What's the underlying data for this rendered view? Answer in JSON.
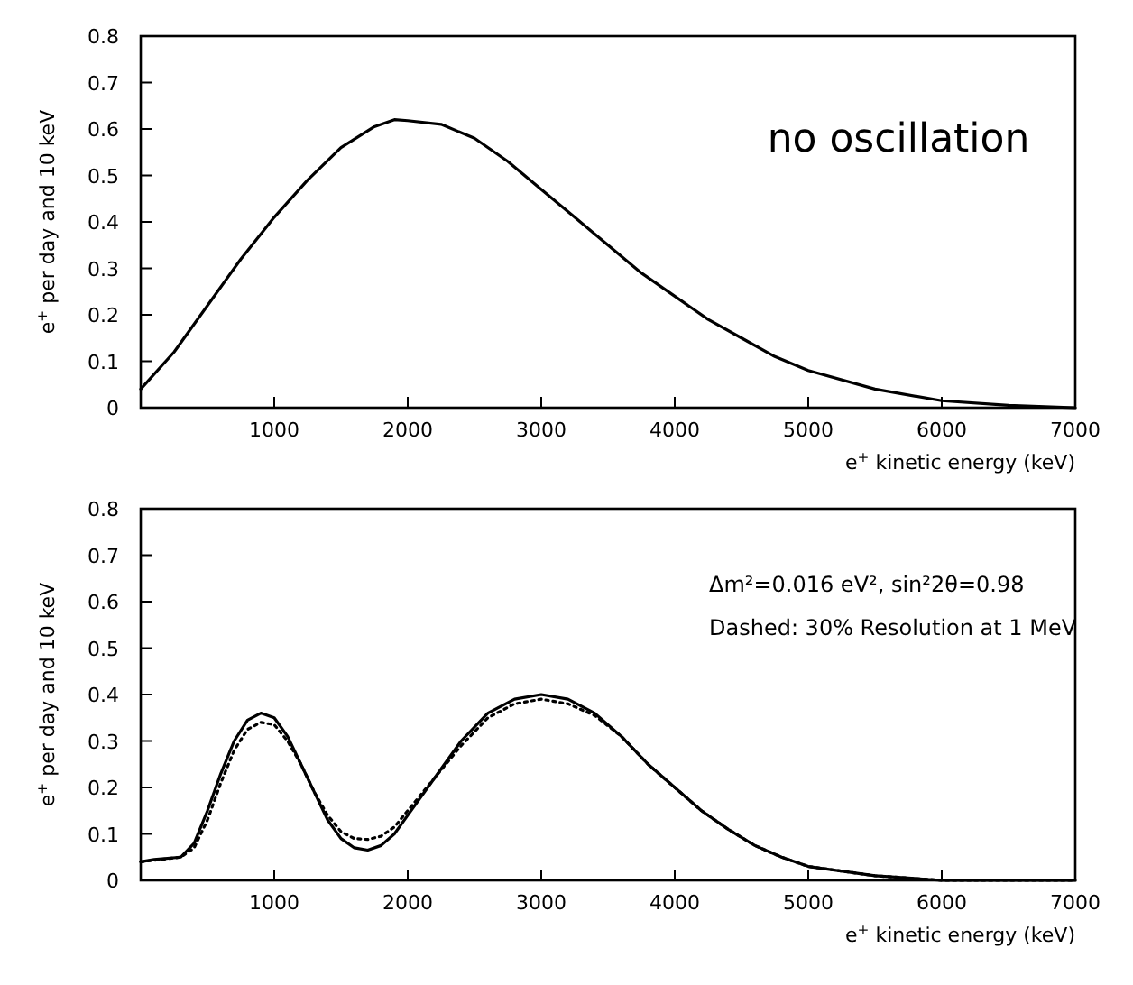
{
  "chart_data": [
    {
      "type": "line",
      "xlabel": "e$^{+}$ kinetic energy (keV)",
      "ylabel": "e$^{+}$ per day and 10 keV",
      "annotations": [
        "no oscillation"
      ],
      "xlim": [
        0,
        7000
      ],
      "ylim": [
        0,
        0.8
      ],
      "xticks": [
        1000,
        2000,
        3000,
        4000,
        5000,
        6000,
        7000
      ],
      "yticks": [
        0,
        0.1,
        0.2,
        0.3,
        0.4,
        0.5,
        0.6,
        0.7,
        0.8
      ],
      "grid": false,
      "marker": "none",
      "series": [
        {
          "color": "#000000",
          "line_style": "solid",
          "x": [
            0,
            250,
            500,
            750,
            1000,
            1250,
            1500,
            1750,
            1900,
            2000,
            2250,
            2500,
            2750,
            3000,
            3250,
            3500,
            3750,
            4000,
            4250,
            4500,
            4750,
            5000,
            5500,
            6000,
            6500,
            7000
          ],
          "values": [
            0.04,
            0.12,
            0.22,
            0.32,
            0.41,
            0.49,
            0.56,
            0.605,
            0.62,
            0.618,
            0.61,
            0.58,
            0.53,
            0.47,
            0.41,
            0.35,
            0.29,
            0.24,
            0.19,
            0.15,
            0.11,
            0.08,
            0.04,
            0.015,
            0.005,
            0
          ]
        }
      ]
    },
    {
      "type": "line",
      "xlabel": "e$^{+}$ kinetic energy (keV)",
      "ylabel": "e$^{+}$ per day and 10 keV",
      "annotations": [
        "Δm²=0.016 eV², sin²2θ=0.98",
        "Dashed: 30% Resolution at 1 MeV"
      ],
      "xlim": [
        0,
        7000
      ],
      "ylim": [
        0,
        0.8
      ],
      "xticks": [
        1000,
        2000,
        3000,
        4000,
        5000,
        6000,
        7000
      ],
      "yticks": [
        0,
        0.1,
        0.2,
        0.3,
        0.4,
        0.5,
        0.6,
        0.7,
        0.8
      ],
      "grid": false,
      "marker": "none",
      "series": [
        {
          "color": "#000000",
          "line_style": "solid",
          "x": [
            0,
            100,
            300,
            400,
            500,
            600,
            700,
            800,
            900,
            1000,
            1100,
            1200,
            1300,
            1400,
            1500,
            1600,
            1700,
            1800,
            1900,
            2000,
            2200,
            2400,
            2600,
            2800,
            3000,
            3200,
            3400,
            3600,
            3800,
            4000,
            4200,
            4400,
            4600,
            4800,
            5000,
            5500,
            6000,
            7000
          ],
          "values": [
            0.04,
            0.045,
            0.05,
            0.08,
            0.15,
            0.23,
            0.3,
            0.345,
            0.36,
            0.35,
            0.31,
            0.25,
            0.19,
            0.13,
            0.09,
            0.07,
            0.065,
            0.075,
            0.1,
            0.14,
            0.22,
            0.3,
            0.36,
            0.39,
            0.4,
            0.39,
            0.36,
            0.31,
            0.25,
            0.2,
            0.15,
            0.11,
            0.075,
            0.05,
            0.03,
            0.01,
            0,
            0
          ]
        },
        {
          "color": "#000000",
          "line_style": "dotted",
          "x": [
            0,
            300,
            400,
            500,
            600,
            700,
            800,
            900,
            1000,
            1100,
            1200,
            1300,
            1400,
            1500,
            1600,
            1700,
            1800,
            1900,
            2000,
            2200,
            2400,
            2600,
            2800,
            3000,
            3200,
            3400,
            3600,
            3800,
            4000,
            4200,
            4400,
            4600,
            4800,
            5000,
            5500,
            6000,
            7000
          ],
          "values": [
            0.04,
            0.05,
            0.07,
            0.13,
            0.21,
            0.28,
            0.325,
            0.34,
            0.335,
            0.3,
            0.25,
            0.19,
            0.14,
            0.105,
            0.09,
            0.088,
            0.095,
            0.115,
            0.15,
            0.22,
            0.29,
            0.35,
            0.38,
            0.39,
            0.38,
            0.355,
            0.31,
            0.25,
            0.2,
            0.15,
            0.11,
            0.075,
            0.05,
            0.03,
            0.01,
            0,
            0
          ]
        }
      ]
    }
  ]
}
